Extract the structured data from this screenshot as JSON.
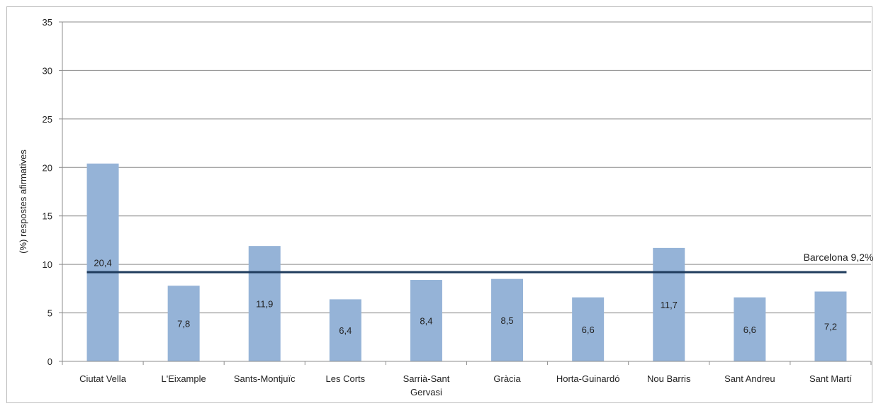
{
  "chart_data": {
    "type": "bar",
    "title": "",
    "xlabel": "",
    "ylabel": "(%) respostes afirmatives",
    "ylim": [
      0,
      35
    ],
    "yticks": [
      "0",
      "5",
      "10",
      "15",
      "20",
      "25",
      "30",
      "35"
    ],
    "categories": [
      [
        "Ciutat Vella"
      ],
      [
        "L'Eixample"
      ],
      [
        "Sants-Montjuïc"
      ],
      [
        "Les Corts"
      ],
      [
        "Sarrià-Sant",
        "Gervasi"
      ],
      [
        "Gràcia"
      ],
      [
        "Horta-Guinardó"
      ],
      [
        "Nou Barris"
      ],
      [
        "Sant Andreu"
      ],
      [
        "Sant Martí"
      ]
    ],
    "values": [
      20.4,
      7.8,
      11.9,
      6.4,
      8.4,
      8.5,
      6.6,
      11.7,
      6.6,
      7.2
    ],
    "value_labels": [
      "20,4",
      "7,8",
      "11,9",
      "6,4",
      "8,4",
      "8,5",
      "6,6",
      "11,7",
      "6,6",
      "7,2"
    ],
    "reference_line": {
      "value": 9.2,
      "label": "Barcelona 9,2%",
      "color": "#1f3b5c"
    },
    "bar_color": "#95b3d7",
    "grid": true,
    "legend": "none"
  }
}
